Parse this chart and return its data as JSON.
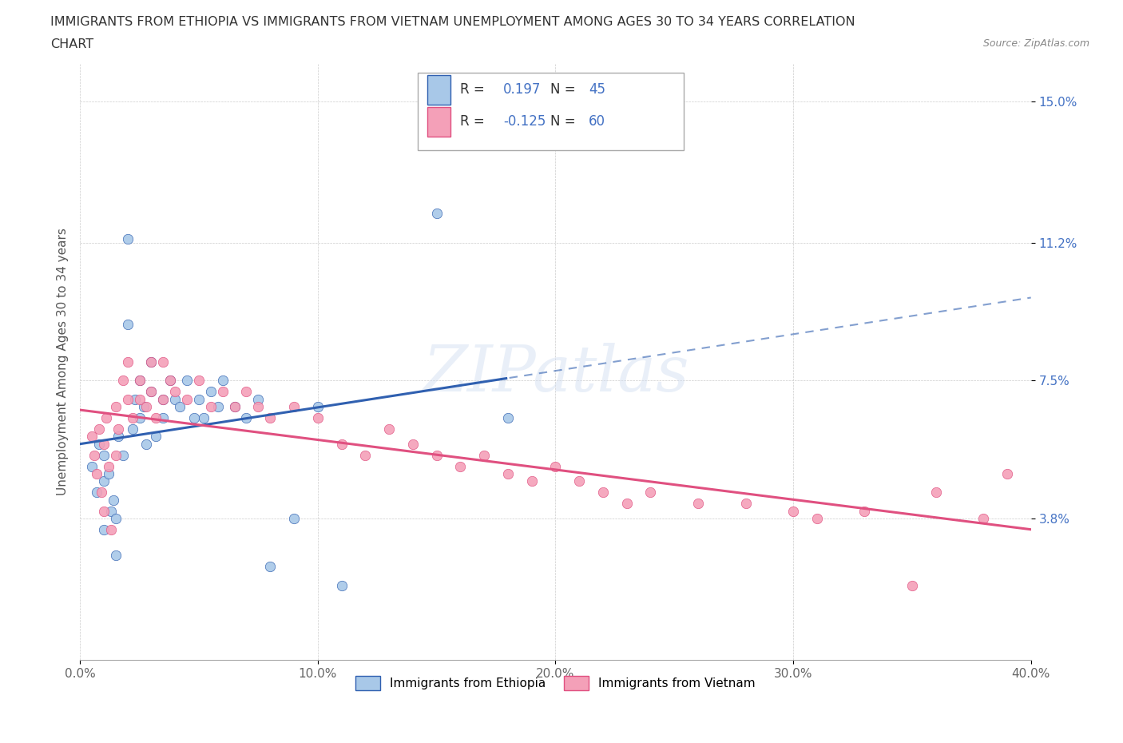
{
  "title_line1": "IMMIGRANTS FROM ETHIOPIA VS IMMIGRANTS FROM VIETNAM UNEMPLOYMENT AMONG AGES 30 TO 34 YEARS CORRELATION",
  "title_line2": "CHART",
  "source_text": "Source: ZipAtlas.com",
  "watermark": "ZIPatlas",
  "ylabel": "Unemployment Among Ages 30 to 34 years",
  "xlim": [
    0.0,
    0.4
  ],
  "ylim": [
    0.0,
    0.16
  ],
  "xticks": [
    0.0,
    0.1,
    0.2,
    0.3,
    0.4
  ],
  "xticklabels": [
    "0.0%",
    "10.0%",
    "20.0%",
    "30.0%",
    "40.0%"
  ],
  "ytick_positions": [
    0.038,
    0.075,
    0.112,
    0.15
  ],
  "ytick_labels": [
    "3.8%",
    "7.5%",
    "11.2%",
    "15.0%"
  ],
  "ethiopia_color": "#a8c8e8",
  "vietnam_color": "#f4a0b8",
  "ethiopia_line_color": "#3060b0",
  "vietnam_line_color": "#e05080",
  "legend_label1": "Immigrants from Ethiopia",
  "legend_label2": "Immigrants from Vietnam",
  "R_ethiopia": 0.197,
  "N_ethiopia": 45,
  "R_vietnam": -0.125,
  "N_vietnam": 60,
  "ethiopia_x": [
    0.005,
    0.007,
    0.008,
    0.01,
    0.01,
    0.01,
    0.012,
    0.013,
    0.014,
    0.015,
    0.015,
    0.016,
    0.018,
    0.02,
    0.02,
    0.022,
    0.023,
    0.025,
    0.025,
    0.027,
    0.028,
    0.03,
    0.03,
    0.032,
    0.035,
    0.035,
    0.038,
    0.04,
    0.042,
    0.045,
    0.048,
    0.05,
    0.052,
    0.055,
    0.058,
    0.06,
    0.065,
    0.07,
    0.075,
    0.08,
    0.09,
    0.1,
    0.11,
    0.15,
    0.18
  ],
  "ethiopia_y": [
    0.052,
    0.045,
    0.058,
    0.048,
    0.055,
    0.035,
    0.05,
    0.04,
    0.043,
    0.038,
    0.028,
    0.06,
    0.055,
    0.113,
    0.09,
    0.062,
    0.07,
    0.065,
    0.075,
    0.068,
    0.058,
    0.072,
    0.08,
    0.06,
    0.07,
    0.065,
    0.075,
    0.07,
    0.068,
    0.075,
    0.065,
    0.07,
    0.065,
    0.072,
    0.068,
    0.075,
    0.068,
    0.065,
    0.07,
    0.025,
    0.038,
    0.068,
    0.02,
    0.12,
    0.065
  ],
  "vietnam_x": [
    0.005,
    0.006,
    0.007,
    0.008,
    0.009,
    0.01,
    0.01,
    0.011,
    0.012,
    0.013,
    0.015,
    0.015,
    0.016,
    0.018,
    0.02,
    0.02,
    0.022,
    0.025,
    0.025,
    0.028,
    0.03,
    0.03,
    0.032,
    0.035,
    0.035,
    0.038,
    0.04,
    0.045,
    0.05,
    0.055,
    0.06,
    0.065,
    0.07,
    0.075,
    0.08,
    0.09,
    0.1,
    0.11,
    0.12,
    0.13,
    0.14,
    0.15,
    0.16,
    0.17,
    0.18,
    0.19,
    0.2,
    0.21,
    0.22,
    0.23,
    0.24,
    0.26,
    0.28,
    0.3,
    0.31,
    0.33,
    0.35,
    0.36,
    0.38,
    0.39
  ],
  "vietnam_y": [
    0.06,
    0.055,
    0.05,
    0.062,
    0.045,
    0.058,
    0.04,
    0.065,
    0.052,
    0.035,
    0.068,
    0.055,
    0.062,
    0.075,
    0.07,
    0.08,
    0.065,
    0.075,
    0.07,
    0.068,
    0.08,
    0.072,
    0.065,
    0.08,
    0.07,
    0.075,
    0.072,
    0.07,
    0.075,
    0.068,
    0.072,
    0.068,
    0.072,
    0.068,
    0.065,
    0.068,
    0.065,
    0.058,
    0.055,
    0.062,
    0.058,
    0.055,
    0.052,
    0.055,
    0.05,
    0.048,
    0.052,
    0.048,
    0.045,
    0.042,
    0.045,
    0.042,
    0.042,
    0.04,
    0.038,
    0.04,
    0.02,
    0.045,
    0.038,
    0.05
  ],
  "background_color": "#ffffff",
  "grid_color": "#cccccc",
  "accent_blue": "#4472c4"
}
